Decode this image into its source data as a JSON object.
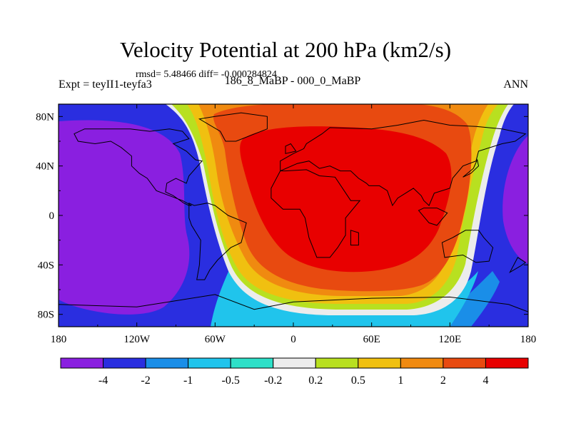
{
  "chart_data": {
    "type": "heatmap",
    "title": "Velocity Potential at 200 hPa (km2/s)",
    "stats": "rmsd= 5.48466 diff= -0.000284824",
    "left_label": "Expt = teyII1-teyfa3",
    "center_label": "186_8_MaBP - 000_0_MaBP",
    "right_label": "ANN",
    "x_ticks": [
      "180",
      "120W",
      "60W",
      "0",
      "60E",
      "120E",
      "180"
    ],
    "x_values": [
      -180,
      -120,
      -60,
      0,
      60,
      120,
      180
    ],
    "y_ticks": [
      "80N",
      "40N",
      "0",
      "40S",
      "80S"
    ],
    "y_values": [
      80,
      40,
      0,
      -40,
      -80
    ],
    "xlim": [
      -180,
      180
    ],
    "ylim": [
      -90,
      90
    ],
    "colorbar_labels": [
      "-4",
      "-2",
      "-1",
      "-0.5",
      "-0.2",
      "0.2",
      "0.5",
      "1",
      "2",
      "4"
    ],
    "colorbar_levels": [
      -4,
      -2,
      -1,
      -0.5,
      -0.2,
      0.2,
      0.5,
      1,
      2,
      4
    ],
    "colors": [
      "#8a1fe0",
      "#2a2ee0",
      "#1a8ee8",
      "#20c4ec",
      "#2ee0c8",
      "#ececec",
      "#b8e020",
      "#f0c010",
      "#f08a10",
      "#e84a10",
      "#e80000"
    ]
  }
}
